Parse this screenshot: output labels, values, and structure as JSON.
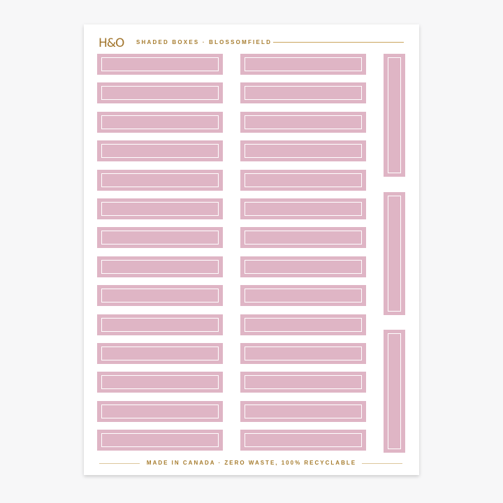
{
  "header": {
    "logo": "H&O",
    "title": "SHADED BOXES · BLOSSOMFIELD"
  },
  "footer": {
    "text": "MADE IN CANADA · ZERO WASTE, 100% RECYCLABLE"
  },
  "stickers": {
    "color": "#dfb5c5",
    "horizontal_rows": 14,
    "horizontal_columns": 2,
    "vertical_count": 3
  },
  "accent_color": "#a67c2e"
}
